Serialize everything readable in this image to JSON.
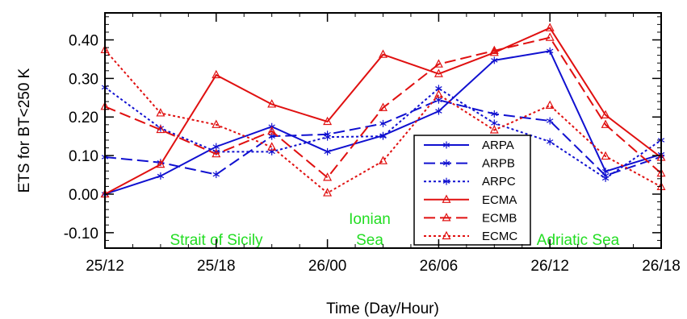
{
  "chart_data": {
    "type": "line",
    "title": "",
    "xlabel": "Time (Day/Hour)",
    "ylabel": "ETS for BT<250 K",
    "x_tick_labels": [
      "25/12",
      "25/18",
      "26/00",
      "26/06",
      "26/12",
      "26/18"
    ],
    "y_tick_labels": [
      "-0.10",
      "0.00",
      "0.10",
      "0.20",
      "0.30",
      "0.40"
    ],
    "xlim": [
      0,
      30
    ],
    "ylim": [
      -0.14,
      0.47
    ],
    "x": [
      0,
      3,
      6,
      9,
      12,
      15,
      18,
      21,
      24,
      27,
      30
    ],
    "grid": false,
    "legend": "lower-center",
    "series": [
      {
        "name": "ARPA",
        "color": "#1010d0",
        "dash": "solid",
        "marker": "asterisk",
        "values": [
          0.0,
          0.047,
          0.123,
          0.175,
          0.11,
          0.152,
          0.215,
          0.347,
          0.371,
          0.059,
          0.103
        ]
      },
      {
        "name": "ARPB",
        "color": "#1010d0",
        "dash": "dashed",
        "marker": "asterisk",
        "values": [
          0.096,
          0.082,
          0.051,
          0.15,
          0.155,
          0.183,
          0.244,
          0.208,
          0.19,
          0.048,
          0.097
        ]
      },
      {
        "name": "ARPC",
        "color": "#1010d0",
        "dash": "dotted",
        "marker": "asterisk",
        "values": [
          0.277,
          0.171,
          0.11,
          0.11,
          0.148,
          0.15,
          0.274,
          0.184,
          0.136,
          0.041,
          0.14
        ]
      },
      {
        "name": "ECMA",
        "color": "#e01010",
        "dash": "solid",
        "marker": "triangle",
        "values": [
          0.0,
          0.077,
          0.309,
          0.233,
          0.188,
          0.362,
          0.312,
          0.367,
          0.431,
          0.205,
          0.095
        ]
      },
      {
        "name": "ECMB",
        "color": "#e01010",
        "dash": "dashed",
        "marker": "triangle",
        "values": [
          0.227,
          0.167,
          0.104,
          0.163,
          0.043,
          0.224,
          0.337,
          0.372,
          0.406,
          0.18,
          0.054
        ]
      },
      {
        "name": "ECMC",
        "color": "#e01010",
        "dash": "dotted",
        "marker": "triangle",
        "values": [
          0.374,
          0.21,
          0.18,
          0.122,
          0.003,
          0.086,
          0.258,
          0.166,
          0.23,
          0.098,
          0.019
        ]
      }
    ],
    "annotations": {
      "color": "#22dd22",
      "strait": "Strait of Sicily",
      "ionian_1": "Ionian",
      "ionian_2": "Sea",
      "adriatic": "Adriatic Sea"
    }
  }
}
